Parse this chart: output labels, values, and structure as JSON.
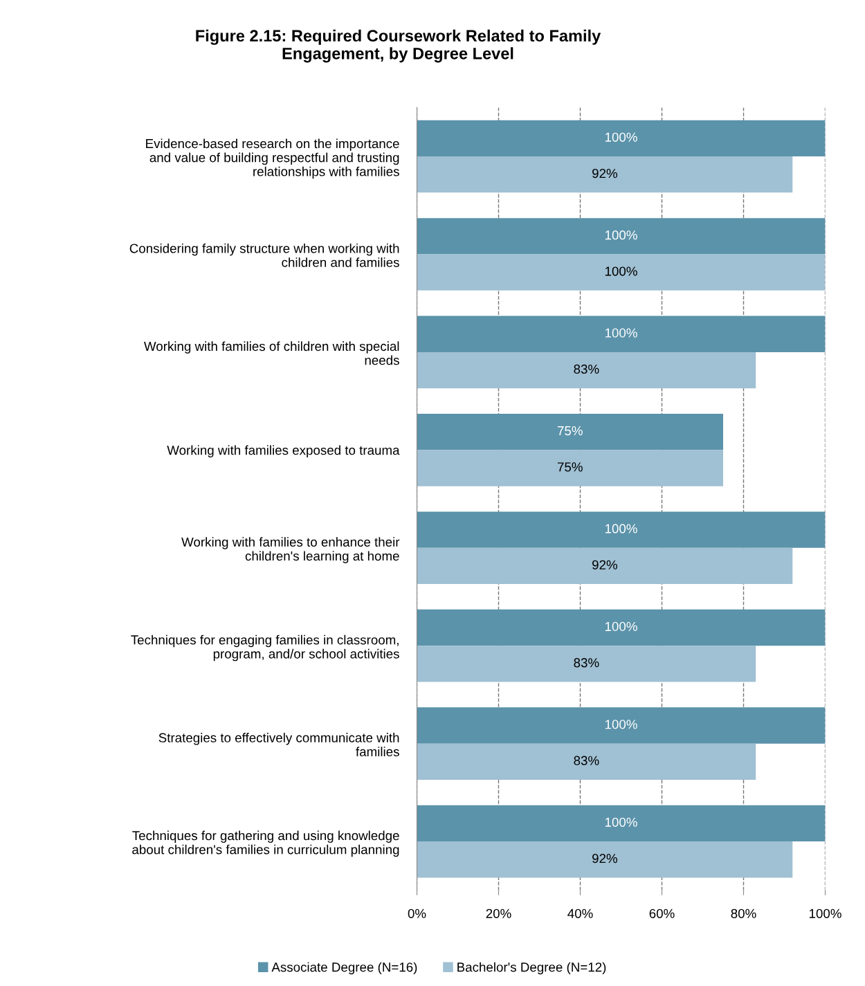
{
  "chart_data": {
    "type": "bar",
    "orientation": "horizontal",
    "title": "Figure 2.15: Required Coursework Related to Family\nEngagement, by Degree Level",
    "categories": [
      "Evidence-based research on the importance\nand value of building respectful and trusting\nrelationships with families",
      "Considering family structure when working with\nchildren and families",
      "Working with families of children with special\nneeds",
      "Working with families exposed to trauma",
      "Working with families to enhance their\nchildren's learning at home",
      "Techniques for engaging families in classroom,\nprogram, and/or school activities",
      "Strategies to effectively communicate with\nfamilies",
      "Techniques for gathering and using knowledge\nabout children's families in curriculum planning"
    ],
    "series": [
      {
        "name": "Associate Degree (N=16)",
        "color": "#5b93aa",
        "values": [
          100,
          100,
          100,
          75,
          100,
          100,
          100,
          100
        ],
        "value_labels": [
          "100%",
          "100%",
          "100%",
          "75%",
          "100%",
          "100%",
          "100%",
          "100%"
        ]
      },
      {
        "name": "Bachelor's Degree (N=12)",
        "color": "#a0c0d3",
        "values": [
          92,
          100,
          83,
          75,
          92,
          83,
          83,
          92
        ],
        "value_labels": [
          "92%",
          "100%",
          "83%",
          "75%",
          "92%",
          "83%",
          "83%",
          "92%"
        ]
      }
    ],
    "xlim": [
      0,
      100
    ],
    "xticks": [
      {
        "value": 0,
        "label": "0%"
      },
      {
        "value": 20,
        "label": "20%"
      },
      {
        "value": 40,
        "label": "40%"
      },
      {
        "value": 60,
        "label": "60%"
      },
      {
        "value": 80,
        "label": "80%"
      },
      {
        "value": 100,
        "label": "100%"
      }
    ],
    "grid": "x",
    "legend": "bottom"
  }
}
